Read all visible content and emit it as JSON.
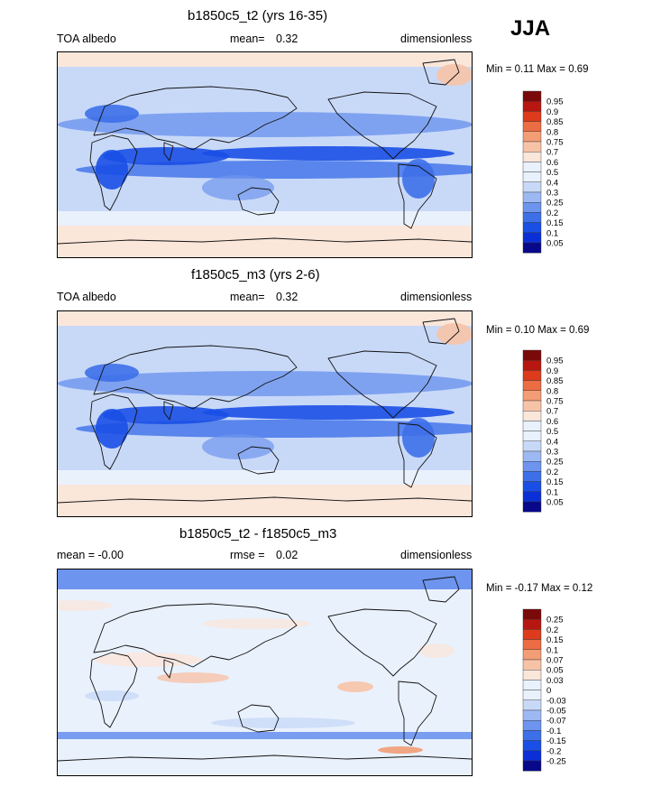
{
  "season": "JJA",
  "colors": {
    "levels_positive": [
      "#08088a",
      "#0b2fd6",
      "#1a4fe6",
      "#3d6fe8",
      "#6d94ee",
      "#9db9f3",
      "#c8d9f8",
      "#e9f1fc",
      "#fbe6da",
      "#f7c3a7",
      "#f29d76",
      "#ec6c43",
      "#dd3b1c",
      "#b81610",
      "#7a0a0a"
    ],
    "land_outline": "#111111"
  },
  "chart_data": [
    {
      "type": "heatmap",
      "title": "b1850c5_t2 (yrs 16-35)",
      "left_label": "TOA albedo",
      "center_label": "mean=",
      "center_value": "0.32",
      "right_label": "dimensionless",
      "minmax_text": "Min =   0.11 Max =   0.69",
      "min": 0.11,
      "max": 0.69,
      "mean": 0.32,
      "colorbar_labels": [
        "0.95",
        "0.9",
        "0.85",
        "0.8",
        "0.75",
        "0.7",
        "0.6",
        "0.5",
        "0.4",
        "0.3",
        "0.25",
        "0.2",
        "0.15",
        "0.1",
        "0.05"
      ]
    },
    {
      "type": "heatmap",
      "title": "f1850c5_m3 (yrs 2-6)",
      "left_label": "TOA albedo",
      "center_label": "mean=",
      "center_value": "0.32",
      "right_label": "dimensionless",
      "minmax_text": "Min =   0.10 Max =   0.69",
      "min": 0.1,
      "max": 0.69,
      "mean": 0.32,
      "colorbar_labels": [
        "0.95",
        "0.9",
        "0.85",
        "0.8",
        "0.75",
        "0.7",
        "0.6",
        "0.5",
        "0.4",
        "0.3",
        "0.25",
        "0.2",
        "0.15",
        "0.1",
        "0.05"
      ]
    },
    {
      "type": "heatmap",
      "title": "b1850c5_t2 - f1850c5_m3",
      "left_label": "mean =  -0.00",
      "center_label": "rmse =",
      "center_value": "0.02",
      "right_label": "dimensionless",
      "minmax_text": "Min =  -0.17 Max =   0.12",
      "min": -0.17,
      "max": 0.12,
      "mean": -0.0,
      "rmse": 0.02,
      "colorbar_labels": [
        "0.25",
        "0.2",
        "0.15",
        "0.1",
        "0.07",
        "0.05",
        "0.03",
        "0",
        "-0.03",
        "-0.05",
        "-0.07",
        "-0.1",
        "-0.15",
        "-0.2",
        "-0.25"
      ]
    }
  ]
}
